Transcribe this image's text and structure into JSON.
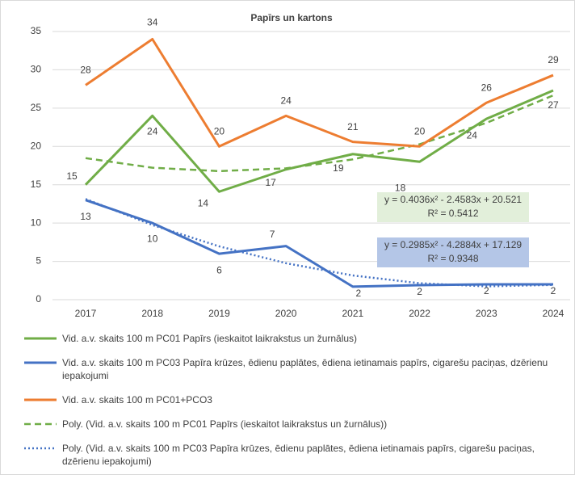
{
  "chart_data": {
    "type": "line",
    "title": "Papīrs un kartons",
    "categories": [
      "2017",
      "2018",
      "2019",
      "2020",
      "2021",
      "2022",
      "2023",
      "2024"
    ],
    "ylim": [
      0,
      35
    ],
    "yticks": [
      0,
      5,
      10,
      15,
      20,
      25,
      30,
      35
    ],
    "grid": true,
    "series": [
      {
        "name": "Vid. a.v. skaits 100 m PC01 Papīrs (ieskaitot laikrakstus un žurnālus)",
        "color": "#70ad47",
        "style": "solid",
        "values": [
          15,
          24,
          14.1,
          17,
          19,
          18,
          23.6,
          27.3
        ],
        "value_labels": [
          "15",
          "24",
          "14",
          "17",
          "19",
          "18",
          "24",
          "27"
        ]
      },
      {
        "name": "Vid. a.v. skaits 100 m PC03 Papīra krūzes, ēdienu paplātes, ēdiena ietinamais papīrs, cigarešu paciņas, dzērienu iepakojumi",
        "color": "#4472c4",
        "style": "solid",
        "values": [
          13,
          10,
          6,
          7,
          1.7,
          1.9,
          2,
          2
        ],
        "value_labels": [
          "13",
          "10",
          "6",
          "7",
          "2",
          "2",
          "2",
          "2"
        ]
      },
      {
        "name": "Vid. a.v. skaits 100 m PC01+PCO3",
        "color": "#ed7d31",
        "style": "solid",
        "values": [
          28,
          34,
          20,
          24,
          20.6,
          20,
          25.7,
          29.3
        ],
        "value_labels": [
          "28",
          "34",
          "20",
          "24",
          "21",
          "20",
          "26",
          "29"
        ]
      },
      {
        "name": "Poly. (Vid. a.v. skaits 100 m PC01 Papīrs (ieskaitot laikrakstus un žurnālus))",
        "color": "#70ad47",
        "style": "dashed",
        "values": [
          18.47,
          17.22,
          16.78,
          17.14,
          18.31,
          20.29,
          23.07,
          26.66
        ]
      },
      {
        "name": "Poly. (Vid. a.v. skaits 100 m PC03 Papīra krūzes, ēdienu paplātes, ēdiena ietinamais papīrs, cigarešu paciņas, dzērienu iepakojumi)",
        "color": "#4472c4",
        "style": "dotted",
        "values": [
          13.14,
          9.75,
          6.96,
          4.76,
          3.16,
          2.15,
          1.74,
          1.93
        ]
      }
    ],
    "annotations": [
      {
        "lines": [
          "y = 0.4036x² - 2.4583x + 20.521",
          "R² = 0.5412"
        ],
        "color": "#e2efda"
      },
      {
        "lines": [
          "y = 0.2985x² - 4.2884x + 17.129",
          "R² = 0.9348"
        ],
        "color": "#b4c6e7"
      }
    ]
  }
}
